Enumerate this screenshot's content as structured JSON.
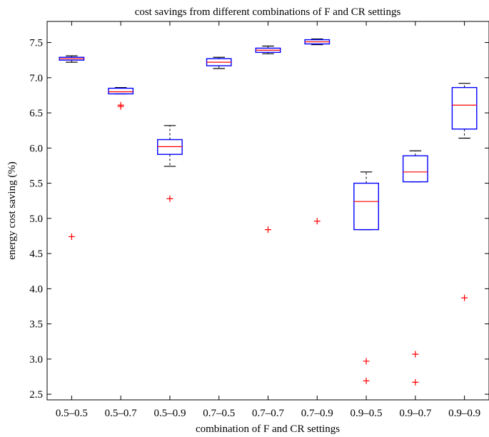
{
  "chart_data": {
    "type": "box",
    "title": "cost savings from different combinations of F and CR settings",
    "xlabel": "combination of F and CR settings",
    "ylabel": "energy cost saving (%)",
    "ylim": [
      2.42,
      7.8
    ],
    "yticks": [
      "2.5",
      "3.0",
      "3.5",
      "4.0",
      "4.5",
      "5.0",
      "5.5",
      "6.0",
      "6.5",
      "7.0",
      "7.5"
    ],
    "grid": false,
    "categories": [
      "0.5–0.5",
      "0.5–0.7",
      "0.5–0.9",
      "0.7–0.5",
      "0.7–0.7",
      "0.7–0.9",
      "0.9–0.5",
      "0.9–0.7",
      "0.9–0.9"
    ],
    "boxes": [
      {
        "whisker_low": 7.22,
        "q1": 7.25,
        "median": 7.27,
        "q3": 7.29,
        "whisker_high": 7.31,
        "outliers": [
          4.74
        ]
      },
      {
        "whisker_low": 6.77,
        "q1": 6.77,
        "median": 6.8,
        "q3": 6.85,
        "whisker_high": 6.86,
        "outliers": [
          6.59,
          6.61
        ]
      },
      {
        "whisker_low": 5.74,
        "q1": 5.91,
        "median": 6.02,
        "q3": 6.12,
        "whisker_high": 6.32,
        "outliers": [
          5.28
        ]
      },
      {
        "whisker_low": 7.13,
        "q1": 7.17,
        "median": 7.22,
        "q3": 7.27,
        "whisker_high": 7.29,
        "outliers": []
      },
      {
        "whisker_low": 7.34,
        "q1": 7.36,
        "median": 7.39,
        "q3": 7.42,
        "whisker_high": 7.45,
        "outliers": [
          4.84
        ]
      },
      {
        "whisker_low": 7.47,
        "q1": 7.48,
        "median": 7.51,
        "q3": 7.54,
        "whisker_high": 7.55,
        "outliers": [
          4.96
        ]
      },
      {
        "whisker_low": 4.84,
        "q1": 4.84,
        "median": 5.24,
        "q3": 5.5,
        "whisker_high": 5.66,
        "outliers": [
          2.97,
          2.69
        ]
      },
      {
        "whisker_low": 5.52,
        "q1": 5.52,
        "median": 5.66,
        "q3": 5.89,
        "whisker_high": 5.96,
        "outliers": [
          3.07,
          2.67
        ]
      },
      {
        "whisker_low": 6.14,
        "q1": 6.27,
        "median": 6.61,
        "q3": 6.86,
        "whisker_high": 6.92,
        "outliers": [
          3.87
        ]
      }
    ],
    "colors": {
      "box": "#0000ff",
      "median": "#ff0000",
      "whisker": "#000000",
      "outlier": "#ff0000"
    }
  }
}
